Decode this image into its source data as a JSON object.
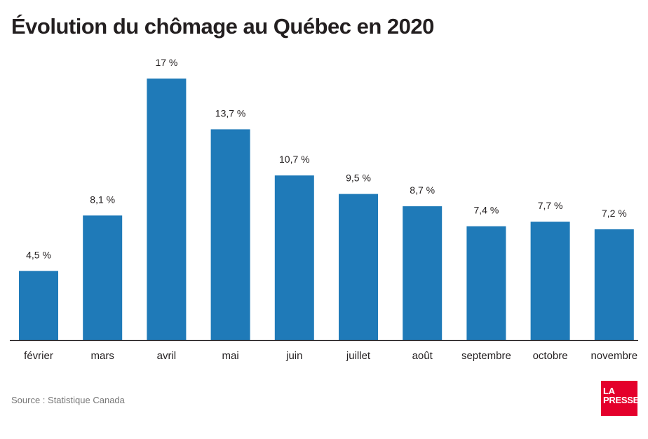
{
  "chart_data": {
    "type": "bar",
    "title": "Évolution du chômage au Québec en 2020",
    "categories": [
      "février",
      "mars",
      "avril",
      "mai",
      "juin",
      "juillet",
      "août",
      "septembre",
      "octobre",
      "novembre"
    ],
    "values": [
      4.5,
      8.1,
      17,
      13.7,
      10.7,
      9.5,
      8.7,
      7.4,
      7.7,
      7.2
    ],
    "value_labels": [
      "4,5 %",
      "8,1 %",
      "17 %",
      "13,7 %",
      "10,7 %",
      "9,5 %",
      "8,7 %",
      "7,4 %",
      "7,7 %",
      "7,2 %"
    ],
    "xlabel": "",
    "ylabel": "",
    "ylim": [
      0,
      17
    ],
    "grid": false,
    "bar_color": "#1f7ab8",
    "axis_color": "#231f20"
  },
  "source": "Source : Statistique Canada",
  "logo": {
    "line1": "LA",
    "line2": "PRESSE",
    "color": "#e4002b"
  }
}
